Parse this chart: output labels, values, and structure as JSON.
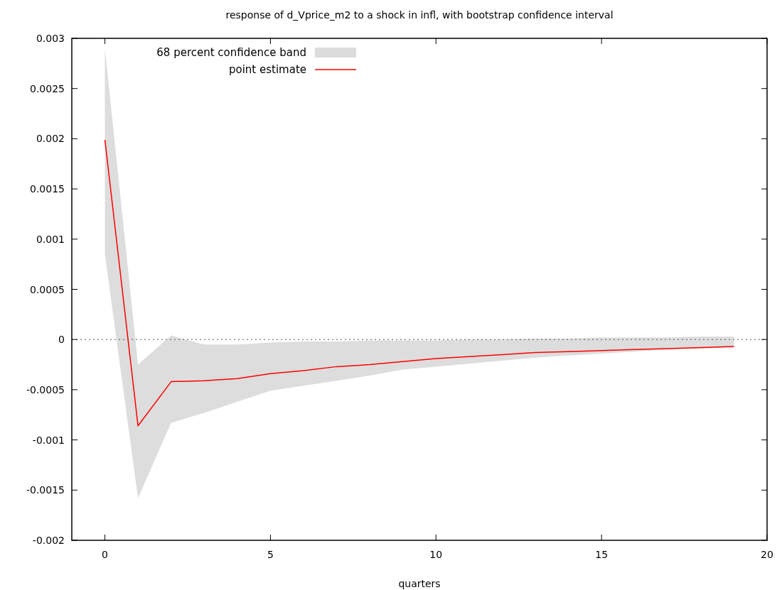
{
  "chart_data": {
    "type": "line",
    "title": "response of d_Vprice_m2 to a shock in infl, with bootstrap confidence interval",
    "xlabel": "quarters",
    "x": [
      0,
      1,
      2,
      3,
      4,
      5,
      6,
      7,
      8,
      9,
      10,
      11,
      12,
      13,
      14,
      15,
      16,
      17,
      18,
      19
    ],
    "series": [
      {
        "name": "point estimate",
        "color": "#ff0000",
        "values": [
          0.00199,
          -0.00086,
          -0.00042,
          -0.00041,
          -0.00039,
          -0.00034,
          -0.00031,
          -0.00027,
          -0.00025,
          -0.00022,
          -0.00019,
          -0.00017,
          -0.00015,
          -0.00013,
          -0.00012,
          -0.00011,
          -0.0001,
          -9e-05,
          -8e-05,
          -7e-05
        ],
        "lower": [
          0.00085,
          -0.00158,
          -0.00083,
          -0.00073,
          -0.00062,
          -0.00051,
          -0.00046,
          -0.00041,
          -0.00036,
          -0.0003,
          -0.00027,
          -0.00024,
          -0.00021,
          -0.00018,
          -0.00016,
          -0.00014,
          -0.00012,
          -0.0001,
          -9e-05,
          -8e-05
        ],
        "upper": [
          0.0029,
          -0.00025,
          4e-05,
          -5e-05,
          -5e-05,
          -3e-05,
          -2e-05,
          -2e-05,
          -1e-05,
          -1e-05,
          -1e-05,
          0,
          0,
          1e-05,
          1e-05,
          2e-05,
          2e-05,
          2e-05,
          3e-05,
          3e-05
        ]
      }
    ],
    "annotations": [
      "68 percent confidence band"
    ],
    "xlim": [
      -1,
      20
    ],
    "xticks": [
      0,
      5,
      10,
      15,
      20
    ],
    "ylim": [
      -0.002,
      0.003
    ],
    "yticks": [
      -0.002,
      -0.0015,
      -0.001,
      -0.0005,
      0,
      0.0005,
      0.001,
      0.0015,
      0.002,
      0.0025,
      0.003
    ],
    "ref_lines": [
      {
        "axis": "y",
        "value": 0,
        "line_style": "dotted",
        "color": "#555555"
      }
    ],
    "legend": "top left",
    "grid": false,
    "line_style": "solid",
    "marker": "none"
  }
}
